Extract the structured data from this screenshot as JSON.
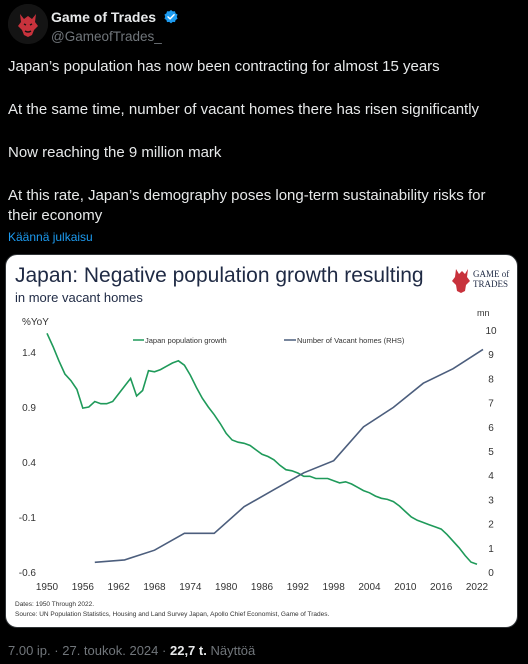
{
  "author": {
    "name": "Game of Trades",
    "handle": "@GameofTrades_"
  },
  "tweet": {
    "paragraphs": [
      "Japan’s population has now been contracting for almost 15 years",
      "At the same time, number of vacant homes there has risen significantly",
      "Now reaching the 9 million mark",
      "At this rate, Japan’s demography poses long-term sustainability risks for their economy"
    ],
    "translate_label": "Käännä julkaisu"
  },
  "meta": {
    "time": "7.00 ip.",
    "date": "27. toukok. 2024",
    "separator": "·",
    "views_count": "22,7 t.",
    "views_label": "Näyttöä"
  },
  "colors": {
    "population_line": "#1f9a5a",
    "vacant_line": "#4c5e7d",
    "chart_title": "#1f2a44",
    "verified": "#1d9bf0"
  },
  "chart_data": {
    "type": "line",
    "title": "Japan: Negative population growth resulting",
    "subtitle": "in more vacant homes",
    "logo_text": [
      "GAME of",
      "TRADES"
    ],
    "left_axis": {
      "label": "%YoY",
      "min": -0.6,
      "max": 1.6,
      "ticks": [
        -0.6,
        -0.1,
        0.4,
        0.9,
        1.4
      ],
      "tick_labels": [
        "-0.6",
        "-0.1",
        "0.4",
        "0.9",
        "1.4"
      ]
    },
    "right_axis": {
      "label": "mn",
      "min": 0,
      "max": 10,
      "ticks": [
        0,
        1,
        2,
        3,
        4,
        5,
        6,
        7,
        8,
        9,
        10
      ]
    },
    "x_axis": {
      "min": 1950,
      "max": 2022,
      "ticks": [
        1950,
        1956,
        1962,
        1968,
        1974,
        1980,
        1986,
        1992,
        1998,
        2004,
        2010,
        2016,
        2022
      ]
    },
    "legend_placement": "top",
    "series": [
      {
        "name": "Japan population growth",
        "axis": "left",
        "points": [
          [
            1950,
            1.57
          ],
          [
            1951,
            1.45
          ],
          [
            1952,
            1.32
          ],
          [
            1953,
            1.2
          ],
          [
            1954,
            1.14
          ],
          [
            1955,
            1.06
          ],
          [
            1956,
            0.89
          ],
          [
            1957,
            0.9
          ],
          [
            1958,
            0.95
          ],
          [
            1959,
            0.93
          ],
          [
            1960,
            0.93
          ],
          [
            1961,
            0.95
          ],
          [
            1962,
            1.02
          ],
          [
            1963,
            1.09
          ],
          [
            1964,
            1.16
          ],
          [
            1965,
            1.0
          ],
          [
            1966,
            1.05
          ],
          [
            1967,
            1.23
          ],
          [
            1968,
            1.22
          ],
          [
            1969,
            1.24
          ],
          [
            1970,
            1.27
          ],
          [
            1971,
            1.3
          ],
          [
            1972,
            1.32
          ],
          [
            1973,
            1.28
          ],
          [
            1974,
            1.19
          ],
          [
            1975,
            1.08
          ],
          [
            1976,
            0.98
          ],
          [
            1977,
            0.9
          ],
          [
            1978,
            0.83
          ],
          [
            1979,
            0.75
          ],
          [
            1980,
            0.66
          ],
          [
            1981,
            0.6
          ],
          [
            1982,
            0.58
          ],
          [
            1983,
            0.57
          ],
          [
            1984,
            0.55
          ],
          [
            1985,
            0.51
          ],
          [
            1986,
            0.47
          ],
          [
            1987,
            0.45
          ],
          [
            1988,
            0.42
          ],
          [
            1989,
            0.37
          ],
          [
            1990,
            0.33
          ],
          [
            1991,
            0.32
          ],
          [
            1992,
            0.3
          ],
          [
            1993,
            0.27
          ],
          [
            1994,
            0.27
          ],
          [
            1995,
            0.25
          ],
          [
            1996,
            0.25
          ],
          [
            1997,
            0.25
          ],
          [
            1998,
            0.23
          ],
          [
            1999,
            0.21
          ],
          [
            2000,
            0.22
          ],
          [
            2001,
            0.2
          ],
          [
            2002,
            0.17
          ],
          [
            2003,
            0.14
          ],
          [
            2004,
            0.12
          ],
          [
            2005,
            0.09
          ],
          [
            2006,
            0.07
          ],
          [
            2007,
            0.06
          ],
          [
            2008,
            0.04
          ],
          [
            2009,
            0.0
          ],
          [
            2010,
            -0.05
          ],
          [
            2011,
            -0.1
          ],
          [
            2012,
            -0.13
          ],
          [
            2013,
            -0.15
          ],
          [
            2014,
            -0.17
          ],
          [
            2015,
            -0.19
          ],
          [
            2016,
            -0.21
          ],
          [
            2017,
            -0.26
          ],
          [
            2018,
            -0.32
          ],
          [
            2019,
            -0.38
          ],
          [
            2020,
            -0.45
          ],
          [
            2021,
            -0.51
          ],
          [
            2022,
            -0.53
          ]
        ]
      },
      {
        "name": "Number of Vacant homes (RHS)",
        "axis": "right",
        "points": [
          [
            1958,
            0.4
          ],
          [
            1963,
            0.5
          ],
          [
            1968,
            0.9
          ],
          [
            1973,
            1.6
          ],
          [
            1978,
            1.6
          ],
          [
            1983,
            2.7
          ],
          [
            1988,
            3.4
          ],
          [
            1993,
            4.1
          ],
          [
            1998,
            4.6
          ],
          [
            2003,
            6.0
          ],
          [
            2008,
            6.8
          ],
          [
            2013,
            7.8
          ],
          [
            2018,
            8.4
          ],
          [
            2023,
            9.2
          ]
        ]
      }
    ],
    "source_note": [
      "Dates:  1950 Through 2022.",
      "Source: UN Population Statistics, Housing and Land Survey Japan, Apollo Chief Economist, Game of Trades."
    ]
  }
}
